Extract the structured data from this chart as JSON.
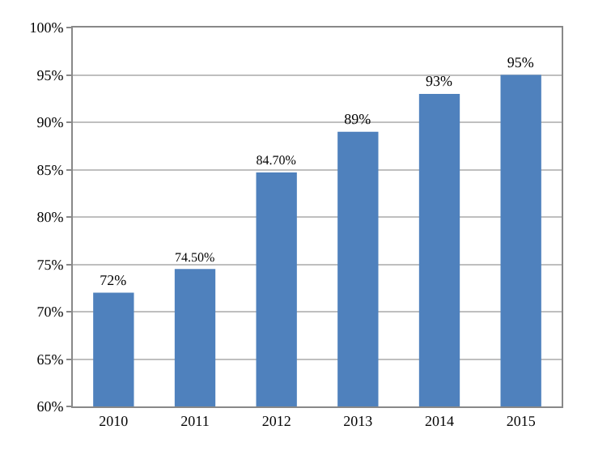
{
  "chart_data": {
    "type": "bar",
    "categories": [
      "2010",
      "2011",
      "2012",
      "2013",
      "2014",
      "2015"
    ],
    "values": [
      72,
      74.5,
      84.7,
      89,
      93,
      95
    ],
    "value_labels": [
      "72%",
      "74.50%",
      "84.70%",
      "89%",
      "93%",
      "95%"
    ],
    "color": "#4f81bd",
    "ylim": [
      60,
      100
    ],
    "yticks": [
      {
        "value": 60,
        "label": "60%"
      },
      {
        "value": 65,
        "label": "65%"
      },
      {
        "value": 70,
        "label": "70%"
      },
      {
        "value": 75,
        "label": "75%"
      },
      {
        "value": 80,
        "label": "80%"
      },
      {
        "value": 85,
        "label": "85%"
      },
      {
        "value": 90,
        "label": "90%"
      },
      {
        "value": 95,
        "label": "95%"
      },
      {
        "value": 100,
        "label": "100%"
      }
    ],
    "grid": "y"
  }
}
